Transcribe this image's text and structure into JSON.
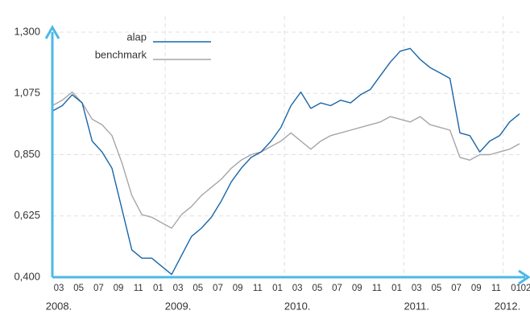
{
  "chart_data": {
    "type": "line",
    "x": [
      "2008-03",
      "2008-04",
      "2008-05",
      "2008-06",
      "2008-07",
      "2008-08",
      "2008-09",
      "2008-10",
      "2008-11",
      "2008-12",
      "2009-01",
      "2009-02",
      "2009-03",
      "2009-04",
      "2009-05",
      "2009-06",
      "2009-07",
      "2009-08",
      "2009-09",
      "2009-10",
      "2009-11",
      "2009-12",
      "2010-01",
      "2010-02",
      "2010-03",
      "2010-04",
      "2010-05",
      "2010-06",
      "2010-07",
      "2010-08",
      "2010-09",
      "2010-10",
      "2010-11",
      "2010-12",
      "2011-01",
      "2011-02",
      "2011-03",
      "2011-04",
      "2011-05",
      "2011-06",
      "2011-07",
      "2011-08",
      "2011-09",
      "2011-10",
      "2011-11",
      "2011-12",
      "2012-01",
      "2012-02"
    ],
    "series": [
      {
        "name": "alap",
        "color": "#1a66a8",
        "values": [
          1.01,
          1.03,
          1.07,
          1.04,
          0.9,
          0.86,
          0.8,
          0.65,
          0.5,
          0.47,
          0.47,
          0.44,
          0.41,
          0.48,
          0.55,
          0.58,
          0.62,
          0.68,
          0.75,
          0.8,
          0.84,
          0.86,
          0.9,
          0.95,
          1.03,
          1.08,
          1.02,
          1.04,
          1.03,
          1.05,
          1.04,
          1.07,
          1.09,
          1.14,
          1.19,
          1.23,
          1.24,
          1.2,
          1.17,
          1.15,
          1.13,
          0.93,
          0.92,
          0.86,
          0.9,
          0.92,
          0.97,
          1.0
        ]
      },
      {
        "name": "benchmark",
        "color": "#a6a6a6",
        "values": [
          1.03,
          1.05,
          1.08,
          1.04,
          0.98,
          0.96,
          0.92,
          0.82,
          0.7,
          0.63,
          0.62,
          0.6,
          0.58,
          0.63,
          0.66,
          0.7,
          0.73,
          0.76,
          0.8,
          0.83,
          0.85,
          0.86,
          0.88,
          0.9,
          0.93,
          0.9,
          0.87,
          0.9,
          0.92,
          0.93,
          0.94,
          0.95,
          0.96,
          0.97,
          0.99,
          0.98,
          0.97,
          0.99,
          0.96,
          0.95,
          0.94,
          0.84,
          0.83,
          0.85,
          0.85,
          0.86,
          0.87,
          0.89
        ]
      }
    ],
    "ylim": [
      0.4,
      1.3
    ],
    "yticks": [
      {
        "value": 1.3,
        "label": "1,300"
      },
      {
        "value": 1.075,
        "label": "1,075"
      },
      {
        "value": 0.85,
        "label": "0,850"
      },
      {
        "value": 0.625,
        "label": "0,625"
      },
      {
        "value": 0.4,
        "label": "0,400"
      }
    ],
    "xticks": [
      {
        "value": "2008-03",
        "label": "03"
      },
      {
        "value": "2008-05",
        "label": "05"
      },
      {
        "value": "2008-07",
        "label": "07"
      },
      {
        "value": "2008-09",
        "label": "09"
      },
      {
        "value": "2008-11",
        "label": "11"
      },
      {
        "value": "2009-01",
        "label": "01"
      },
      {
        "value": "2009-03",
        "label": "03"
      },
      {
        "value": "2009-05",
        "label": "05"
      },
      {
        "value": "2009-07",
        "label": "07"
      },
      {
        "value": "2009-09",
        "label": "09"
      },
      {
        "value": "2009-11",
        "label": "11"
      },
      {
        "value": "2010-01",
        "label": "01"
      },
      {
        "value": "2010-03",
        "label": "03"
      },
      {
        "value": "2010-05",
        "label": "05"
      },
      {
        "value": "2010-07",
        "label": "07"
      },
      {
        "value": "2010-09",
        "label": "09"
      },
      {
        "value": "2010-11",
        "label": "11"
      },
      {
        "value": "2011-01",
        "label": "01"
      },
      {
        "value": "2011-03",
        "label": "03"
      },
      {
        "value": "2011-05",
        "label": "05"
      },
      {
        "value": "2011-07",
        "label": "07"
      },
      {
        "value": "2011-09",
        "label": "09"
      },
      {
        "value": "2011-11",
        "label": "11"
      },
      {
        "value": "2012-01",
        "label": "01"
      },
      {
        "value": "2012-02",
        "label": "02"
      }
    ],
    "year_labels": [
      {
        "value": "2008-03",
        "label": "2008."
      },
      {
        "value": "2009-03",
        "label": "2009."
      },
      {
        "value": "2010-03",
        "label": "2010."
      },
      {
        "value": "2011-03",
        "label": "2011."
      },
      {
        "value": "2012-01",
        "label": "2012."
      }
    ],
    "grid": true,
    "legend": "top-left"
  }
}
